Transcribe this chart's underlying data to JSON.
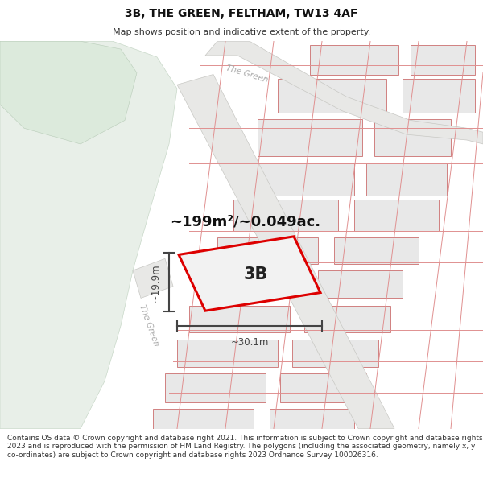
{
  "title": "3B, THE GREEN, FELTHAM, TW13 4AF",
  "subtitle": "Map shows position and indicative extent of the property.",
  "footer": "Contains OS data © Crown copyright and database right 2021. This information is subject to Crown copyright and database rights 2023 and is reproduced with the permission of HM Land Registry. The polygons (including the associated geometry, namely x, y co-ordinates) are subject to Crown copyright and database rights 2023 Ordnance Survey 100026316.",
  "area_label": "~199m²/~0.049ac.",
  "label_3b": "3B",
  "dim_width": "~30.1m",
  "dim_height": "~19.9m",
  "map_bg": "#f5f4f4",
  "green_color": "#e8efe8",
  "green_top_color": "#dceadc",
  "road_color": "#e8e8e6",
  "road_border": "#c8c8c4",
  "bldg_fill": "#e8e8e8",
  "bldg_edge": "#d08080",
  "bldg_edge_light": "#e0a8a8",
  "highlight_fill": "#f2f2f2",
  "highlight_edge": "#dd0000",
  "dim_color": "#444444",
  "road_label_color": "#aaaaaa",
  "title_fontsize": 10,
  "subtitle_fontsize": 8,
  "footer_fontsize": 6.5
}
